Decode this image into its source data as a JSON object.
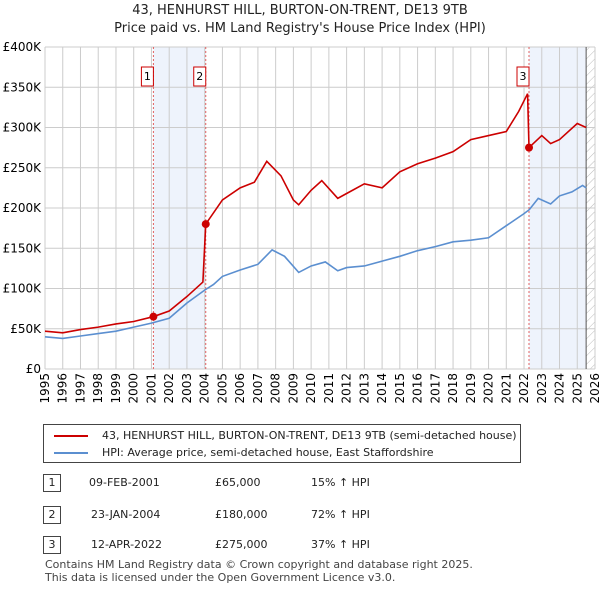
{
  "chart_data": {
    "type": "line",
    "title": "43, HENHURST HILL, BURTON-ON-TRENT, DE13 9TB",
    "subtitle": "Price paid vs. HM Land Registry's House Price Index (HPI)",
    "xlim": [
      1995,
      2026
    ],
    "ylim": [
      0,
      400000
    ],
    "x_ticks": [
      "1995",
      "1996",
      "1997",
      "1998",
      "1999",
      "2000",
      "2001",
      "2002",
      "2003",
      "2004",
      "2005",
      "2006",
      "2007",
      "2008",
      "2009",
      "2010",
      "2011",
      "2012",
      "2013",
      "2014",
      "2015",
      "2016",
      "2017",
      "2018",
      "2019",
      "2020",
      "2021",
      "2022",
      "2023",
      "2024",
      "2025",
      "2026"
    ],
    "y_ticks": [
      {
        "v": 0,
        "label": "£0"
      },
      {
        "v": 50000,
        "label": "£50K"
      },
      {
        "v": 100000,
        "label": "£100K"
      },
      {
        "v": 150000,
        "label": "£150K"
      },
      {
        "v": 200000,
        "label": "£200K"
      },
      {
        "v": 250000,
        "label": "£250K"
      },
      {
        "v": 300000,
        "label": "£300K"
      },
      {
        "v": 350000,
        "label": "£350K"
      },
      {
        "v": 400000,
        "label": "£400K"
      }
    ],
    "series": [
      {
        "name": "43, HENHURST HILL, BURTON-ON-TRENT, DE13 9TB (semi-detached house)",
        "color": "#cc0000",
        "x": [
          1995,
          1996,
          1997,
          1998,
          1999,
          2000,
          2001.1,
          2002,
          2003,
          2003.9,
          2004.06,
          2005,
          2006,
          2006.8,
          2007.5,
          2008.3,
          2009,
          2009.3,
          2010,
          2010.6,
          2011.5,
          2012,
          2013,
          2014,
          2015,
          2016,
          2017,
          2018,
          2019,
          2020,
          2021,
          2021.7,
          2022.2,
          2022.28,
          2023,
          2023.5,
          2024,
          2025,
          2025.5
        ],
        "y": [
          47000,
          45000,
          49000,
          52000,
          56000,
          59000,
          65000,
          72000,
          90000,
          108000,
          180000,
          210000,
          225000,
          232000,
          258000,
          240000,
          210000,
          204000,
          222000,
          234000,
          212000,
          218000,
          230000,
          225000,
          245000,
          255000,
          262000,
          270000,
          285000,
          290000,
          295000,
          320000,
          342000,
          275000,
          290000,
          280000,
          285000,
          305000,
          300000
        ]
      },
      {
        "name": "HPI: Average price, semi-detached house, East Staffordshire",
        "color": "#5b8fd0",
        "x": [
          1995,
          1996,
          1997,
          1998,
          1999,
          2000,
          2001,
          2002,
          2003,
          2004,
          2004.5,
          2005,
          2006,
          2007,
          2007.8,
          2008.5,
          2009.3,
          2010,
          2010.8,
          2011.5,
          2012,
          2013,
          2014,
          2015,
          2016,
          2017,
          2018,
          2019,
          2020,
          2021,
          2022,
          2022.3,
          2022.8,
          2023.5,
          2024,
          2024.7,
          2025.3,
          2025.5
        ],
        "y": [
          40000,
          38000,
          41000,
          44000,
          47000,
          52000,
          57000,
          63000,
          82000,
          98000,
          105000,
          115000,
          123000,
          130000,
          148000,
          140000,
          120000,
          128000,
          133000,
          122000,
          126000,
          128000,
          134000,
          140000,
          147000,
          152000,
          158000,
          160000,
          163000,
          178000,
          193000,
          198000,
          212000,
          205000,
          215000,
          220000,
          228000,
          225000
        ]
      }
    ],
    "sales": [
      {
        "n": "1",
        "x": 2001.11,
        "price": 65000,
        "date": "09-FEB-2001",
        "price_label": "£65,000",
        "hpi": "15% ↑ HPI"
      },
      {
        "n": "2",
        "x": 2004.06,
        "price": 180000,
        "date": "23-JAN-2004",
        "price_label": "£180,000",
        "hpi": "72% ↑ HPI"
      },
      {
        "n": "3",
        "x": 2022.28,
        "price": 275000,
        "date": "12-APR-2022",
        "price_label": "£275,000",
        "hpi": "37% ↑ HPI"
      }
    ],
    "data_end": 2025.5
  },
  "footer": {
    "line1": "Contains HM Land Registry data © Crown copyright and database right 2025.",
    "line2": "This data is licensed under the Open Government Licence v3.0."
  }
}
